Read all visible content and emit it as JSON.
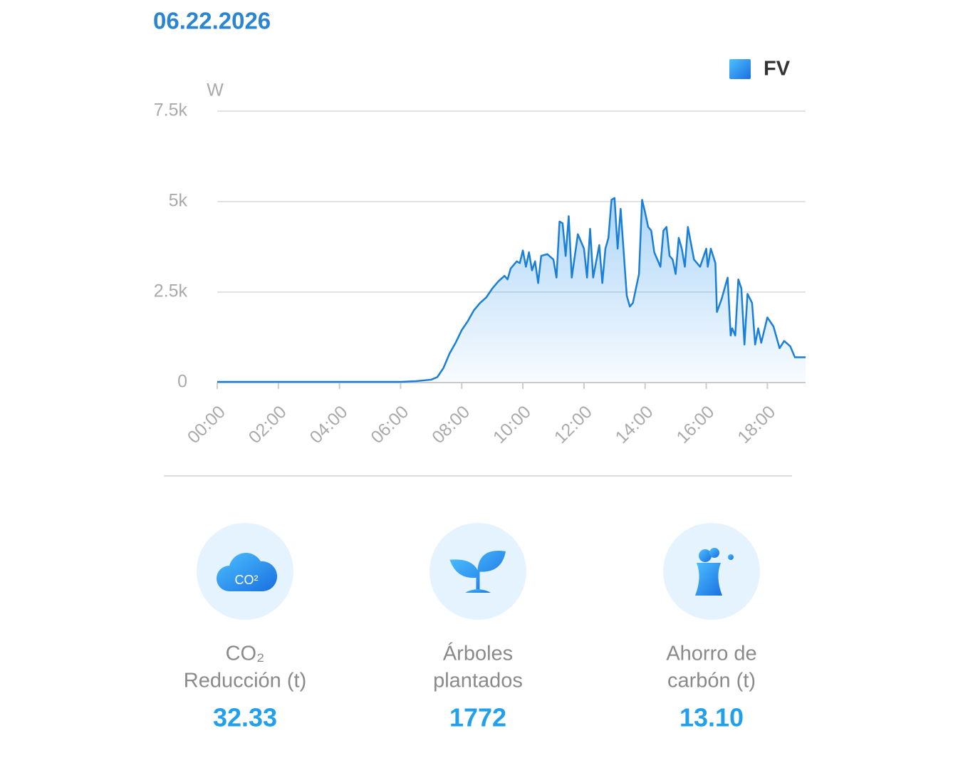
{
  "date": "06.22.2026",
  "chart_data": {
    "type": "area",
    "y_label": "W",
    "x": [
      0,
      1,
      2,
      3,
      4,
      5,
      6,
      6.5,
      7,
      7.2,
      7.4,
      7.6,
      7.8,
      8,
      8.2,
      8.4,
      8.6,
      8.8,
      9,
      9.2,
      9.4,
      9.5,
      9.6,
      9.8,
      9.9,
      10,
      10.1,
      10.2,
      10.3,
      10.4,
      10.5,
      10.6,
      10.8,
      11,
      11.1,
      11.2,
      11.3,
      11.4,
      11.5,
      11.6,
      11.8,
      12,
      12.1,
      12.2,
      12.3,
      12.5,
      12.6,
      12.7,
      12.8,
      12.9,
      13,
      13.1,
      13.2,
      13.4,
      13.5,
      13.6,
      13.8,
      13.9,
      14,
      14.1,
      14.2,
      14.3,
      14.5,
      14.6,
      14.7,
      14.8,
      14.9,
      15,
      15.1,
      15.2,
      15.3,
      15.4,
      15.6,
      15.8,
      16,
      16.05,
      16.15,
      16.3,
      16.35,
      16.5,
      16.7,
      16.8,
      16.85,
      16.95,
      17.05,
      17.15,
      17.25,
      17.35,
      17.5,
      17.6,
      17.7,
      17.8,
      18,
      18.2,
      18.4,
      18.55,
      18.75,
      18.9,
      19.25
    ],
    "series": [
      {
        "name": "FV",
        "color": "#1a7fd8",
        "values": [
          20,
          20,
          20,
          20,
          20,
          20,
          20,
          40,
          80,
          150,
          400,
          800,
          1100,
          1450,
          1700,
          2000,
          2200,
          2350,
          2600,
          2800,
          2950,
          2850,
          3150,
          3350,
          3300,
          3650,
          3200,
          3600,
          3100,
          3350,
          2750,
          3500,
          3550,
          3400,
          2900,
          4450,
          4400,
          3500,
          4600,
          2900,
          4100,
          3700,
          2900,
          4250,
          2900,
          3800,
          2750,
          3700,
          4000,
          5050,
          5100,
          3700,
          4800,
          2400,
          2100,
          2200,
          3000,
          5050,
          4700,
          4300,
          4200,
          3600,
          3200,
          4200,
          4300,
          3500,
          3400,
          3000,
          4000,
          3700,
          3200,
          4300,
          3400,
          3200,
          3700,
          3200,
          3700,
          3300,
          1950,
          2300,
          2900,
          1300,
          1500,
          1300,
          2850,
          2600,
          1050,
          2450,
          2200,
          1050,
          1500,
          1100,
          1800,
          1550,
          950,
          1150,
          1000,
          700,
          700
        ]
      }
    ],
    "xlim": [
      0,
      19.25
    ],
    "xticks": [
      {
        "value": 0,
        "label": "00:00"
      },
      {
        "value": 2,
        "label": "02:00"
      },
      {
        "value": 4,
        "label": "04:00"
      },
      {
        "value": 6,
        "label": "06:00"
      },
      {
        "value": 8,
        "label": "08:00"
      },
      {
        "value": 10,
        "label": "10:00"
      },
      {
        "value": 12,
        "label": "12:00"
      },
      {
        "value": 14,
        "label": "14:00"
      },
      {
        "value": 16,
        "label": "16:00"
      },
      {
        "value": 18,
        "label": "18:00"
      }
    ],
    "ylim": [
      0,
      7500
    ],
    "yticks": [
      0,
      {
        "value": 2500,
        "label": "2.5k"
      },
      {
        "value": 5000,
        "label": "5k"
      },
      {
        "value": 7500,
        "label": "7.5k"
      }
    ],
    "grid": true,
    "legend": "top-right"
  },
  "stats": [
    {
      "icon_text": "CO²",
      "label_lines": [
        "CO₂",
        "Reducción (t)"
      ],
      "value": "32.33"
    },
    {
      "label_lines": [
        "Árboles",
        "plantados"
      ],
      "value": "1772"
    },
    {
      "label_lines": [
        "Ahorro de",
        "carbón (t)"
      ],
      "value": "13.10"
    }
  ]
}
